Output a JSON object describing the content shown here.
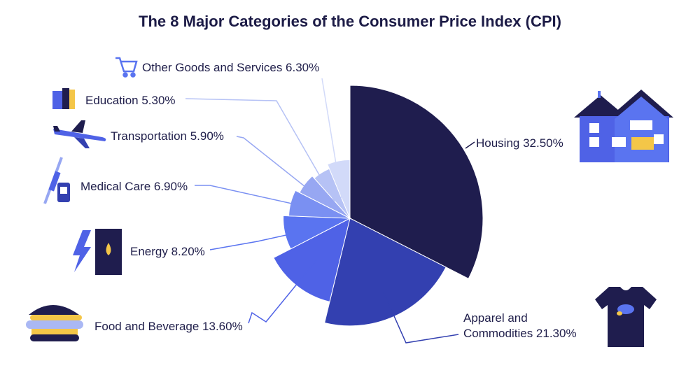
{
  "chart_data": {
    "type": "pie",
    "title": "The 8 Major Categories of the Consumer Price Index (CPI)",
    "series": [
      {
        "name": "Housing",
        "label": "Housing 32.50%",
        "value": 32.5,
        "color": "#1f1d4e"
      },
      {
        "name": "Apparel and Commodities",
        "label_lines": [
          "Apparel and",
          "Commodities 21.30%"
        ],
        "value": 21.3,
        "color": "#3340b0"
      },
      {
        "name": "Food and Beverage",
        "label": "Food and Beverage 13.60%",
        "value": 13.6,
        "color": "#4f62e6"
      },
      {
        "name": "Energy",
        "label": "Energy 8.20%",
        "value": 8.2,
        "color": "#5a74f0"
      },
      {
        "name": "Medical Care",
        "label": "Medical Care 6.90%",
        "value": 6.9,
        "color": "#7a90f2"
      },
      {
        "name": "Transportation",
        "label": "Transportation 5.90%",
        "value": 5.9,
        "color": "#97a7f2"
      },
      {
        "name": "Education",
        "label": "Education 5.30%",
        "value": 5.3,
        "color": "#b6c2f5"
      },
      {
        "name": "Other Goods and Services",
        "label": "Other Goods and Services 6.30%",
        "value": 6.3,
        "color": "#d2daf9"
      }
    ],
    "icons": [
      "house-icon",
      "tshirt-icon",
      "burger-icon",
      "oil-barrel-icon",
      "syringe-icon",
      "airplane-icon",
      "books-icon",
      "shopping-cart-icon"
    ]
  }
}
